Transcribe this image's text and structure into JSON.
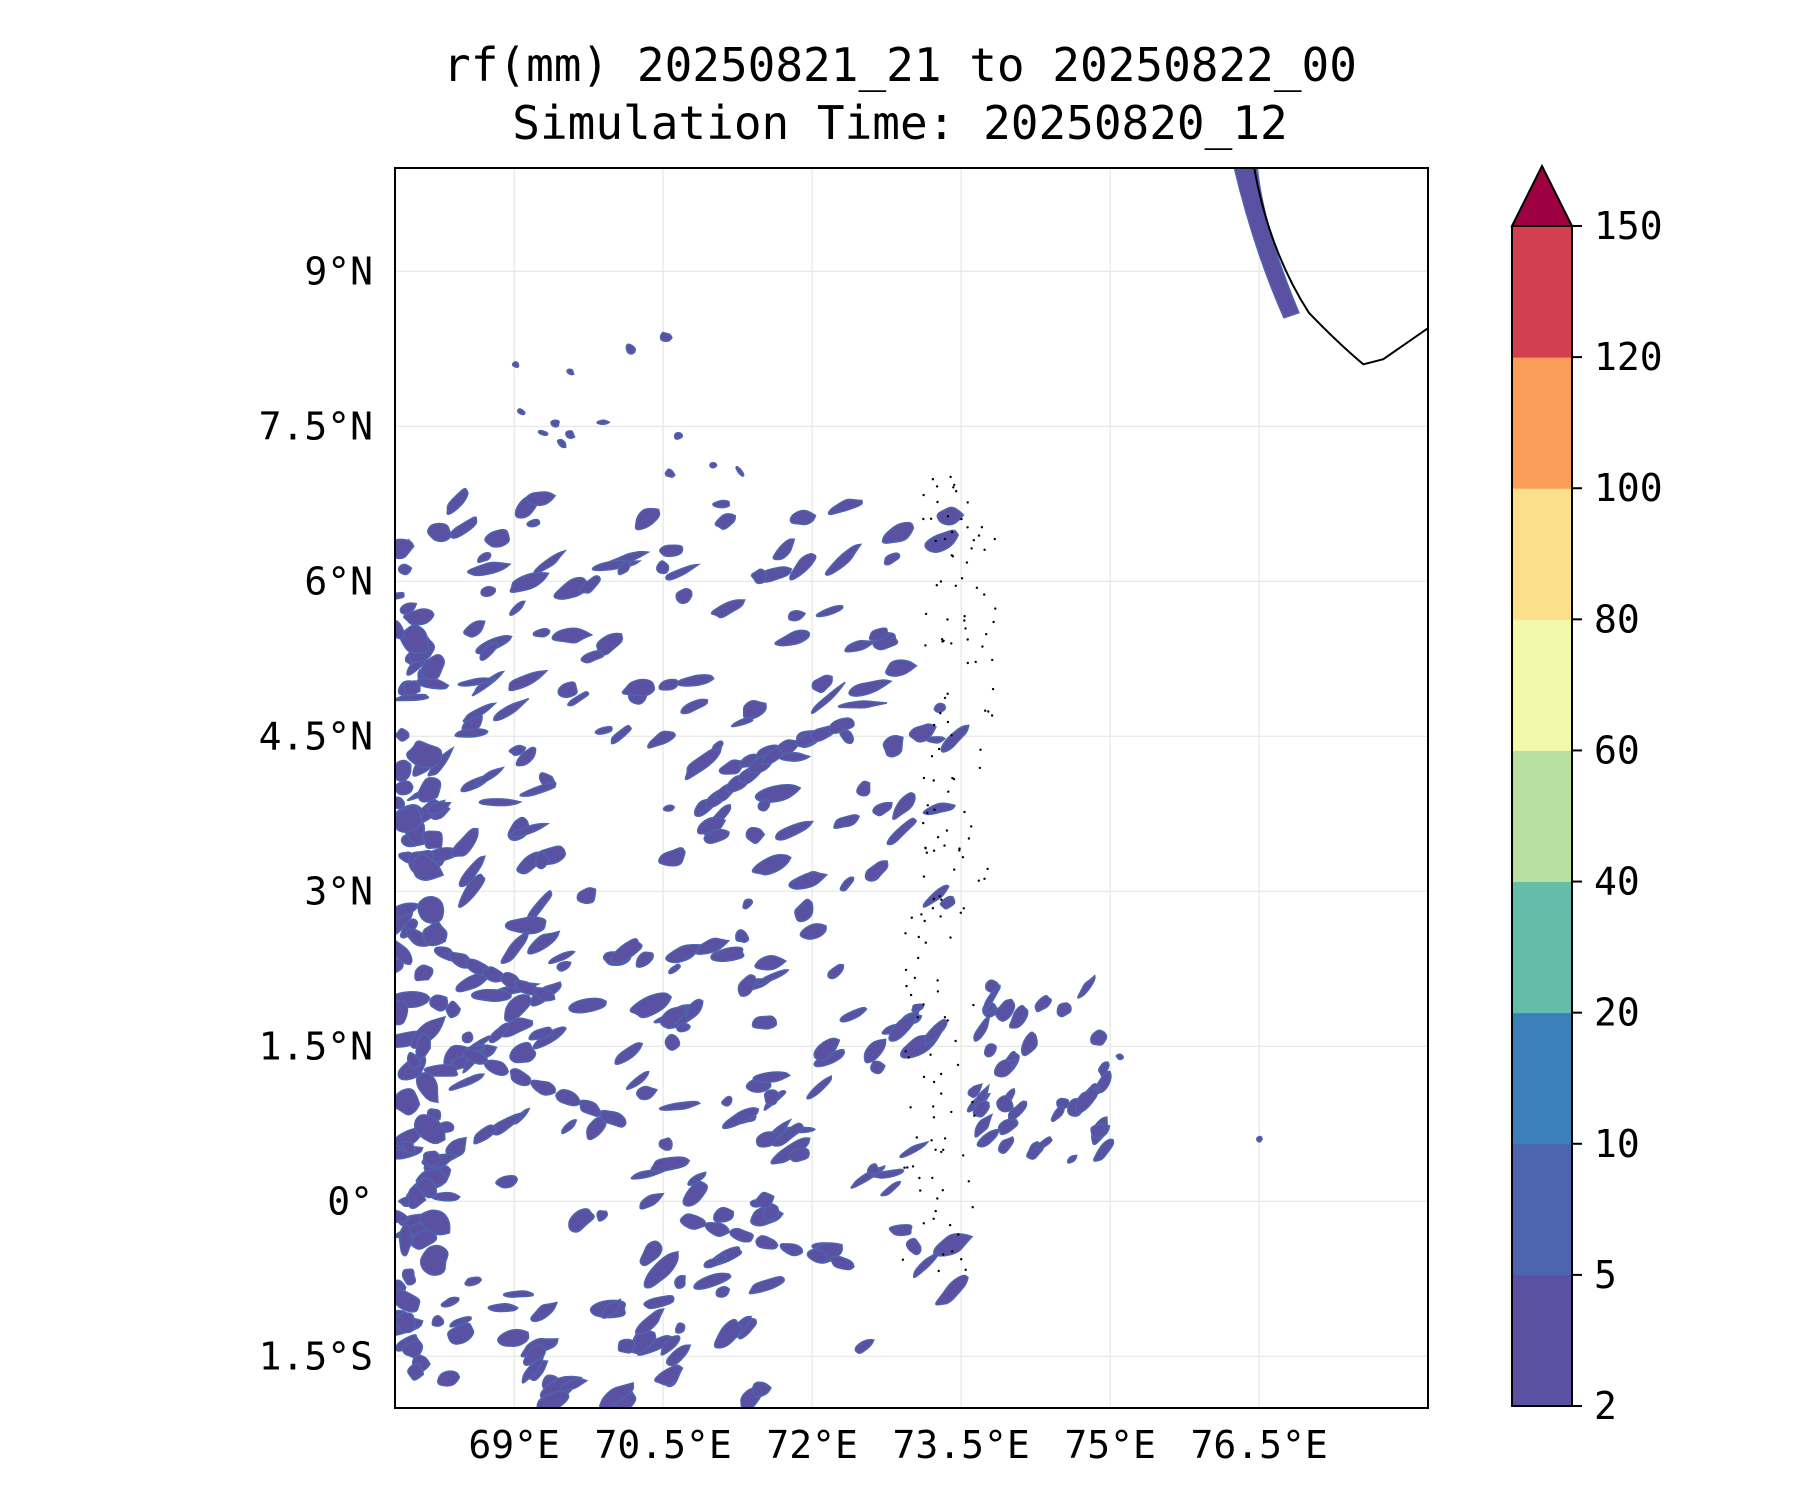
{
  "title": {
    "line1": "rf(mm) 20250821_21 to 20250822_00",
    "line2": "Simulation Time: 20250820_12"
  },
  "map": {
    "lon_range": [
      67.8,
      78.2
    ],
    "lat_range": [
      -2.0,
      10.0
    ],
    "lon_ticks": [
      {
        "value": 69.0,
        "label": "69°E"
      },
      {
        "value": 70.5,
        "label": "70.5°E"
      },
      {
        "value": 72.0,
        "label": "72°E"
      },
      {
        "value": 73.5,
        "label": "73.5°E"
      },
      {
        "value": 75.0,
        "label": "75°E"
      },
      {
        "value": 76.5,
        "label": "76.5°E"
      }
    ],
    "lat_ticks": [
      {
        "value": 9.0,
        "label": "9°N"
      },
      {
        "value": 7.5,
        "label": "7.5°N"
      },
      {
        "value": 6.0,
        "label": "6°N"
      },
      {
        "value": 4.5,
        "label": "4.5°N"
      },
      {
        "value": 3.0,
        "label": "3°N"
      },
      {
        "value": 1.5,
        "label": "1.5°N"
      },
      {
        "value": 0.0,
        "label": "0°"
      },
      {
        "value": -1.5,
        "label": "1.5°S"
      }
    ],
    "gridlines": true
  },
  "colorbar": {
    "levels": [
      "2",
      "5",
      "10",
      "20",
      "40",
      "60",
      "80",
      "100",
      "120",
      "150"
    ],
    "colors": [
      "#5b51a3",
      "#4d64ae",
      "#3b80b9",
      "#63bda8",
      "#b9e0a1",
      "#f3f9aa",
      "#fbdf8b",
      "#f99d59",
      "#d23f4f"
    ],
    "extend_color": "#9e0142",
    "extend": "max"
  },
  "rainfall_color": "#5b51a3",
  "rainfall_edge_color": "#4d64ae"
}
